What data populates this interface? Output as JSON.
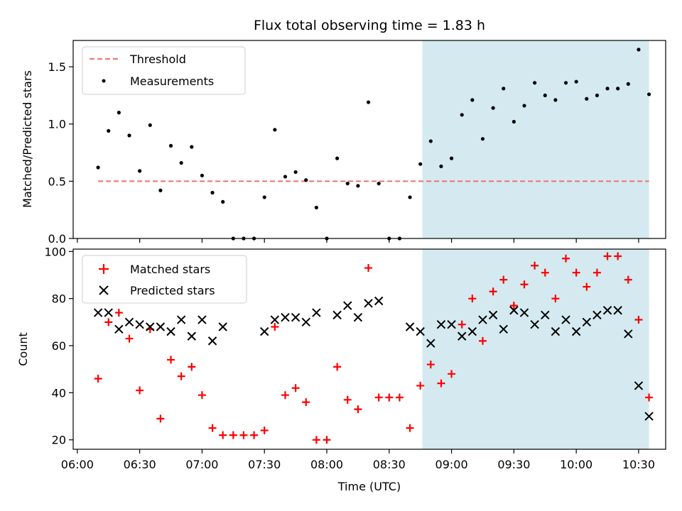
{
  "chart_data": [
    {
      "type": "scatter",
      "title": "Flux total observing time = 1.83 h",
      "xlabel": "",
      "ylabel": "Matched/Predicted stars",
      "ylim": [
        0,
        1.73
      ],
      "yticks": [
        "0.0",
        "0.5",
        "1.0",
        "1.5"
      ],
      "highlight_span": {
        "start": "08:46",
        "end": "10:35",
        "color": "#d4eaf0"
      },
      "threshold": {
        "name": "Threshold",
        "value": 0.5,
        "color": "#f07070"
      },
      "legend": {
        "position": "upper-left",
        "entries": [
          "Threshold",
          "Measurements"
        ]
      },
      "series": [
        {
          "name": "Measurements",
          "x": [
            "06:10",
            "06:15",
            "06:20",
            "06:25",
            "06:30",
            "06:35",
            "06:40",
            "06:45",
            "06:50",
            "06:55",
            "07:00",
            "07:05",
            "07:10",
            "07:15",
            "07:20",
            "07:25",
            "07:30",
            "07:35",
            "07:40",
            "07:45",
            "07:50",
            "07:55",
            "08:00",
            "08:05",
            "08:10",
            "08:15",
            "08:20",
            "08:25",
            "08:30",
            "08:35",
            "08:40",
            "08:45",
            "08:50",
            "08:55",
            "09:00",
            "09:05",
            "09:10",
            "09:15",
            "09:20",
            "09:25",
            "09:30",
            "09:35",
            "09:40",
            "09:45",
            "09:50",
            "09:55",
            "10:00",
            "10:05",
            "10:10",
            "10:15",
            "10:20",
            "10:25",
            "10:30",
            "10:35"
          ],
          "y": [
            0.62,
            0.94,
            1.1,
            0.9,
            0.59,
            0.99,
            0.42,
            0.81,
            0.66,
            0.8,
            0.55,
            0.4,
            0.32,
            0.0,
            0.0,
            0.0,
            0.36,
            0.95,
            0.54,
            0.58,
            0.51,
            0.27,
            0.0,
            0.7,
            0.48,
            0.46,
            1.19,
            0.48,
            0.0,
            0.0,
            0.36,
            0.65,
            0.85,
            0.63,
            0.7,
            1.08,
            1.21,
            0.87,
            1.14,
            1.31,
            1.02,
            1.16,
            1.36,
            1.25,
            1.21,
            1.36,
            1.37,
            1.22,
            1.25,
            1.31,
            1.31,
            1.35,
            1.65,
            1.26
          ]
        }
      ]
    },
    {
      "type": "scatter",
      "xlabel": "Time (UTC)",
      "ylabel": "Count",
      "xlim": [
        "05:58",
        "10:43"
      ],
      "ylim": [
        16,
        101
      ],
      "xticks": [
        "06:00",
        "06:30",
        "07:00",
        "07:30",
        "08:00",
        "08:30",
        "09:00",
        "09:30",
        "10:00",
        "10:30"
      ],
      "yticks": [
        "20",
        "40",
        "60",
        "80",
        "100"
      ],
      "highlight_span": {
        "start": "08:46",
        "end": "10:35",
        "color": "#d4eaf0"
      },
      "legend": {
        "position": "upper-left",
        "entries": [
          "Matched stars",
          "Predicted stars"
        ]
      },
      "series": [
        {
          "name": "Matched stars",
          "marker": "+",
          "color": "#ff0000",
          "x": [
            "06:10",
            "06:15",
            "06:20",
            "06:25",
            "06:30",
            "06:35",
            "06:40",
            "06:45",
            "06:50",
            "06:55",
            "07:00",
            "07:05",
            "07:10",
            "07:15",
            "07:20",
            "07:25",
            "07:30",
            "07:35",
            "07:40",
            "07:45",
            "07:50",
            "07:55",
            "08:00",
            "08:05",
            "08:10",
            "08:15",
            "08:20",
            "08:25",
            "08:30",
            "08:35",
            "08:40",
            "08:45",
            "08:50",
            "08:55",
            "09:00",
            "09:05",
            "09:10",
            "09:15",
            "09:20",
            "09:25",
            "09:30",
            "09:35",
            "09:40",
            "09:45",
            "09:50",
            "09:55",
            "10:00",
            "10:05",
            "10:10",
            "10:15",
            "10:20",
            "10:25",
            "10:30",
            "10:35"
          ],
          "y": [
            46,
            70,
            74,
            63,
            41,
            67,
            29,
            54,
            47,
            51,
            39,
            25,
            22,
            22,
            22,
            22,
            24,
            68,
            39,
            42,
            36,
            20,
            20,
            51,
            37,
            33,
            93,
            38,
            38,
            38,
            25,
            43,
            52,
            44,
            48,
            69,
            80,
            62,
            83,
            88,
            77,
            86,
            94,
            91,
            80,
            97,
            91,
            85,
            91,
            98,
            98,
            88,
            71,
            38
          ]
        },
        {
          "name": "Predicted stars",
          "marker": "x",
          "color": "#000000",
          "x": [
            "06:10",
            "06:15",
            "06:20",
            "06:25",
            "06:30",
            "06:35",
            "06:40",
            "06:45",
            "06:50",
            "06:55",
            "07:00",
            "07:05",
            "07:10",
            "07:30",
            "07:35",
            "07:40",
            "07:45",
            "07:50",
            "07:55",
            "08:05",
            "08:10",
            "08:15",
            "08:20",
            "08:25",
            "08:40",
            "08:45",
            "08:50",
            "08:55",
            "09:00",
            "09:05",
            "09:10",
            "09:15",
            "09:20",
            "09:25",
            "09:30",
            "09:35",
            "09:40",
            "09:45",
            "09:50",
            "09:55",
            "10:00",
            "10:05",
            "10:10",
            "10:15",
            "10:20",
            "10:25",
            "10:30",
            "10:35"
          ],
          "y": [
            74,
            74,
            67,
            70,
            69,
            68,
            68,
            66,
            71,
            64,
            71,
            62,
            68,
            66,
            71,
            72,
            72,
            70,
            74,
            73,
            77,
            72,
            78,
            79,
            68,
            66,
            61,
            69,
            69,
            64,
            66,
            71,
            73,
            67,
            75,
            74,
            69,
            73,
            66,
            71,
            66,
            70,
            73,
            75,
            75,
            65,
            43,
            30
          ]
        }
      ]
    }
  ]
}
